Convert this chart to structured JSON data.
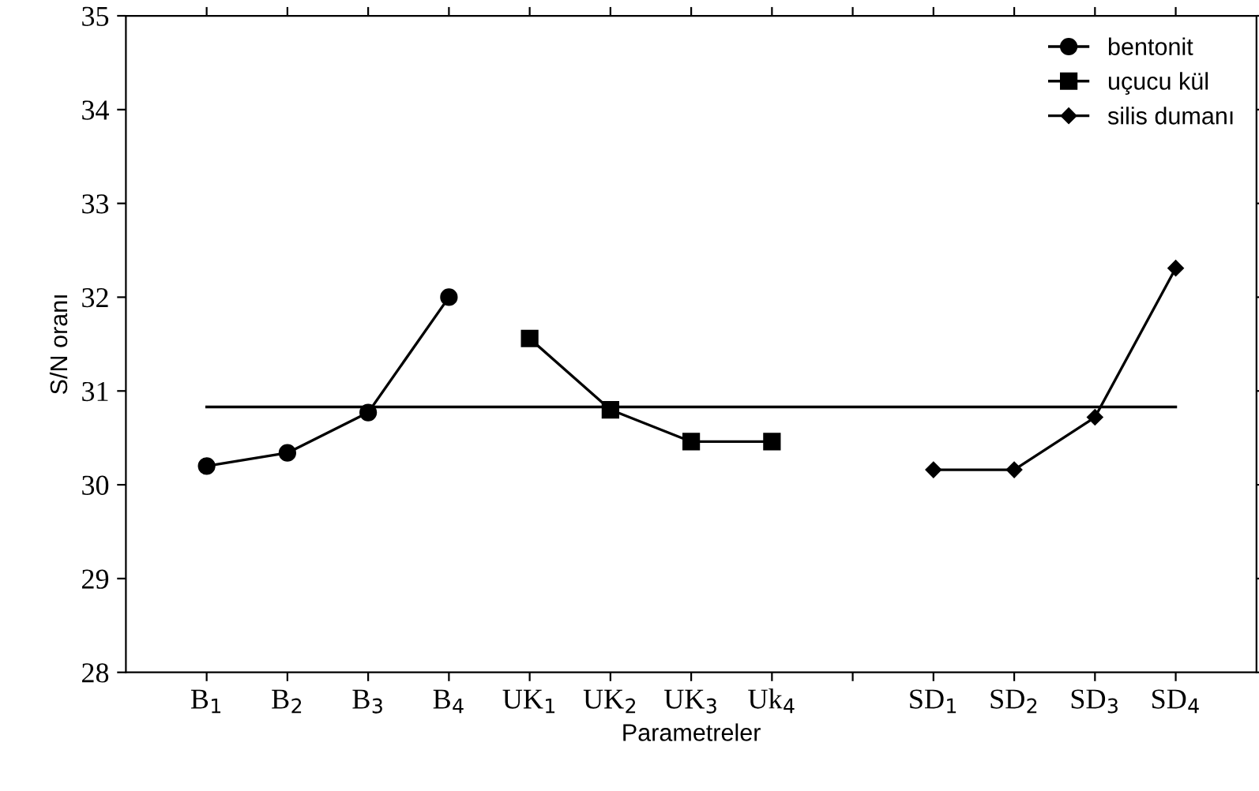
{
  "chart_data": {
    "type": "line",
    "xlabel": "Parametreler",
    "ylabel": "S/N oranı",
    "categories": [
      "B$_{1}$",
      "B$_{2}$",
      "B$_{3}$",
      "B$_{4}$",
      "UK$_{1}$",
      "UK$_{2}$",
      "UK$_{3}$",
      "Uk$_{4}$",
      null,
      "SD$_{1}$",
      "SD$_{2}$",
      "SD$_{3}$",
      "SD$_{4}$"
    ],
    "series": [
      {
        "name": "bentonit",
        "color": "#000000",
        "marker": "circle",
        "values": [
          30.2,
          30.34,
          30.77,
          32.0,
          null,
          null,
          null,
          null,
          null,
          null,
          null,
          null,
          null
        ]
      },
      {
        "name": "uçucu kül",
        "color": "#000000",
        "marker": "square",
        "values": [
          null,
          null,
          null,
          null,
          31.56,
          30.8,
          30.46,
          30.46,
          null,
          null,
          null,
          null,
          null
        ]
      },
      {
        "name": "silis dumanı",
        "color": "#000000",
        "marker": "diamond",
        "values": [
          null,
          null,
          null,
          null,
          null,
          null,
          null,
          null,
          null,
          30.16,
          30.16,
          30.72,
          32.31
        ]
      }
    ],
    "ref_lines": [
      {
        "axis": "y",
        "value": 30.83,
        "color": "#000000"
      }
    ],
    "ylim": [
      28,
      35
    ],
    "yticks": [
      28,
      29,
      30,
      31,
      32,
      33,
      34,
      35
    ],
    "grid": false,
    "legend": "top right"
  }
}
